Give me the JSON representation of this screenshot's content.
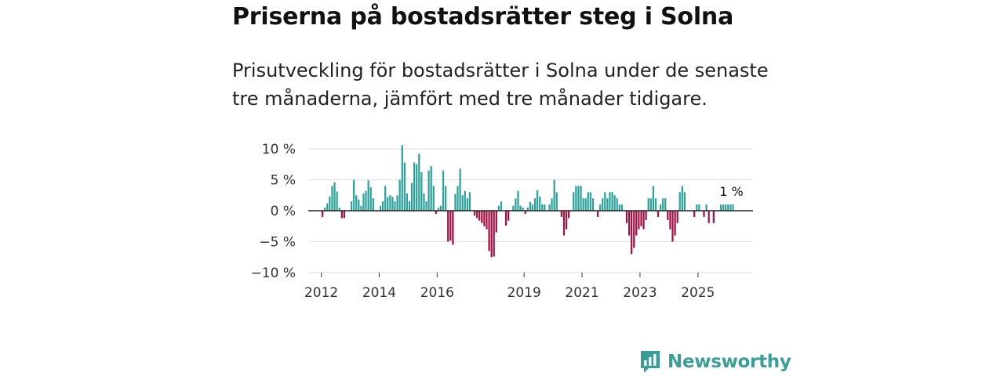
{
  "header": {
    "title": "Priserna på bostadsrätter steg i Solna",
    "subtitle": "Prisutveckling för bostadsrätter i Solna under de senaste tre månaderna, jämfört med tre månader tidigare."
  },
  "brand": {
    "name": "Newsworthy",
    "color": "#3a9e97"
  },
  "chart_data": {
    "type": "bar",
    "title": "",
    "xlabel": "",
    "ylabel": "",
    "ylim": [
      -10,
      10
    ],
    "yticks": [
      10,
      5,
      0,
      -5,
      -10
    ],
    "ytick_labels": [
      "10 %",
      "5 %",
      "0 %",
      "−5 %",
      "−10 %"
    ],
    "xlim": [
      2011.55,
      2026.9
    ],
    "xticks": [
      2012,
      2014,
      2016,
      2019,
      2021,
      2023,
      2025
    ],
    "xtick_labels": [
      "2012",
      "2014",
      "2016",
      "2019",
      "2021",
      "2023",
      "2025"
    ],
    "colors": {
      "positive": "#2aa198",
      "negative": "#9e1042"
    },
    "start": "2012-01",
    "frequency": "monthly",
    "unit": "%",
    "end_label": "1 %",
    "values": [
      -1.0,
      0.5,
      1.2,
      2.3,
      4.0,
      4.6,
      3.1,
      0.5,
      -1.2,
      -1.2,
      0.0,
      0.0,
      1.5,
      5.0,
      2.5,
      1.8,
      0.8,
      2.8,
      3.2,
      4.9,
      3.8,
      2.0,
      0.0,
      0.0,
      0.8,
      1.5,
      4.0,
      2.2,
      2.5,
      2.2,
      1.5,
      2.5,
      5.0,
      10.6,
      7.8,
      2.8,
      1.5,
      4.5,
      7.8,
      7.5,
      9.2,
      6.2,
      2.8,
      1.5,
      6.5,
      7.2,
      4.0,
      -0.5,
      0.5,
      0.8,
      6.5,
      4.0,
      -5.0,
      -4.8,
      -5.5,
      2.7,
      4.0,
      6.8,
      2.5,
      3.2,
      2.0,
      3.0,
      0.0,
      -0.8,
      -1.2,
      -1.6,
      -2.0,
      -2.5,
      -3.0,
      -6.5,
      -7.5,
      -7.4,
      -3.5,
      0.8,
      1.5,
      0.0,
      -2.4,
      -1.6,
      0.0,
      0.8,
      2.0,
      3.2,
      0.8,
      0.5,
      -0.5,
      0.5,
      1.4,
      1.0,
      2.0,
      3.3,
      2.3,
      1.0,
      1.0,
      0.0,
      1.0,
      2.0,
      5.0,
      3.0,
      0.0,
      -1.0,
      -4.0,
      -3.0,
      -1.2,
      0.0,
      3.0,
      4.0,
      4.0,
      4.0,
      2.0,
      2.0,
      3.0,
      3.0,
      2.0,
      0.0,
      -1.0,
      1.0,
      2.0,
      3.0,
      2.0,
      3.0,
      3.0,
      2.5,
      2.0,
      1.0,
      1.0,
      0.0,
      -2.0,
      -4.0,
      -7.0,
      -6.0,
      -4.0,
      -3.0,
      -2.5,
      -3.0,
      -1.5,
      2.0,
      2.0,
      4.0,
      2.0,
      -1.0,
      1.0,
      2.0,
      2.0,
      -1.5,
      -3.0,
      -5.0,
      -4.0,
      -2.0,
      3.0,
      4.0,
      3.0,
      0.0,
      0.0,
      0.0,
      -1.0,
      1.0,
      1.0,
      0.0,
      -1.0,
      1.0,
      -2.0,
      0.0,
      -2.0,
      0.0,
      0.0,
      1.0,
      1.0,
      1.0,
      1.0,
      1.0,
      1.0
    ]
  }
}
